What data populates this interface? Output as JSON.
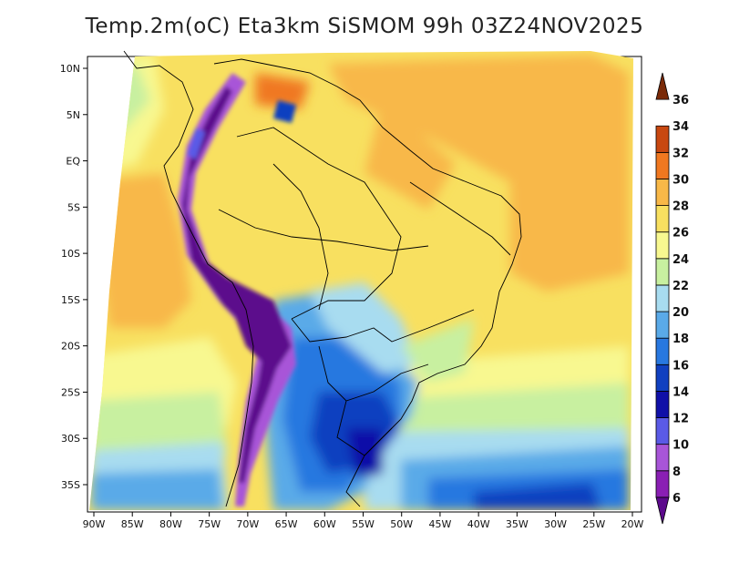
{
  "title": "Temp.2m(oC) Eta3km SiSMOM 99h 03Z24NOV2025",
  "map": {
    "projection": "conic",
    "lon_ticks": [
      "90W",
      "85W",
      "80W",
      "75W",
      "70W",
      "65W",
      "60W",
      "55W",
      "50W",
      "45W",
      "40W",
      "35W",
      "30W",
      "25W",
      "20W"
    ],
    "lat_ticks": [
      "10N",
      "5N",
      "EQ",
      "5S",
      "10S",
      "15S",
      "20S",
      "25S",
      "30S",
      "35S"
    ]
  },
  "colorbar": {
    "labels": [
      "6",
      "8",
      "10",
      "12",
      "14",
      "16",
      "18",
      "20",
      "22",
      "24",
      "26",
      "28",
      "30",
      "32",
      "34",
      "36"
    ],
    "colors": [
      "#5c0a8c",
      "#8a1fb4",
      "#a855d8",
      "#5a5ae6",
      "#1010a8",
      "#1040c0",
      "#2878e0",
      "#5aaae8",
      "#a8dcf0",
      "#c8f0a0",
      "#f8f890",
      "#f8e060",
      "#f8b848",
      "#f07820",
      "#c84810",
      "#7a2a08"
    ]
  }
}
